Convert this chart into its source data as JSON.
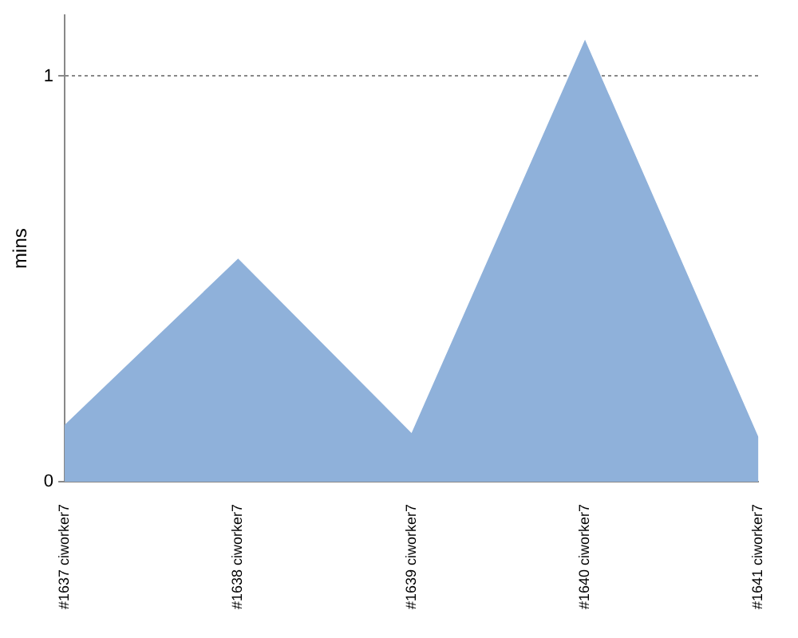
{
  "chart_data": {
    "type": "area",
    "ylabel": "mins",
    "categories": [
      "#1637 ciworker7",
      "#1638 ciworker7",
      "#1639 ciworker7",
      "#1640 ciworker7",
      "#1641 ciworker7"
    ],
    "values": [
      0.14,
      0.55,
      0.12,
      1.09,
      0.11
    ],
    "color": "#8fb1da",
    "ylim": [
      0,
      1.15
    ],
    "yticks": [
      0,
      1
    ],
    "grid": "y"
  }
}
